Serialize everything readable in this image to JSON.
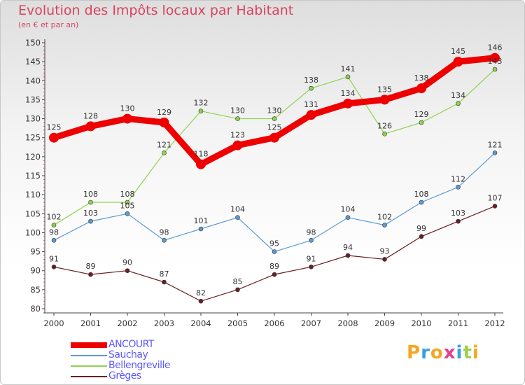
{
  "header": {
    "title": "Evolution des Impôts locaux par Habitant",
    "subtitle": "(en € et par an)"
  },
  "logo": {
    "text": "Proxiti",
    "colors": [
      "#f5a623",
      "#3aa0e0",
      "#f5a623",
      "#e83e8c",
      "#3aa0e0",
      "#9bd14b",
      "#f5a623"
    ]
  },
  "chart_data": {
    "type": "line",
    "x": [
      2000,
      2001,
      2002,
      2003,
      2004,
      2005,
      2006,
      2007,
      2008,
      2009,
      2010,
      2011,
      2012
    ],
    "ylim": [
      80,
      150
    ],
    "yticks": [
      80,
      85,
      90,
      95,
      100,
      105,
      110,
      115,
      120,
      125,
      130,
      135,
      140,
      145,
      150
    ],
    "grid": false,
    "legend_position": "bottom-left",
    "series": [
      {
        "name": "ANCOURT",
        "color": "#ee0000",
        "values": [
          125,
          128,
          130,
          129,
          118,
          123,
          125,
          131,
          134,
          135,
          138,
          145,
          146
        ]
      },
      {
        "name": "Sauchay",
        "color": "#5b9bd5",
        "values": [
          98,
          103,
          105,
          98,
          101,
          104,
          95,
          98,
          104,
          102,
          108,
          112,
          121
        ]
      },
      {
        "name": "Bellengreville",
        "color": "#8fd14f",
        "values": [
          102,
          108,
          108,
          121,
          132,
          130,
          130,
          138,
          141,
          126,
          129,
          134,
          143
        ]
      },
      {
        "name": "Grèges",
        "color": "#6b1e24",
        "values": [
          91,
          89,
          90,
          87,
          82,
          85,
          89,
          91,
          94,
          93,
          99,
          103,
          107
        ]
      }
    ]
  }
}
